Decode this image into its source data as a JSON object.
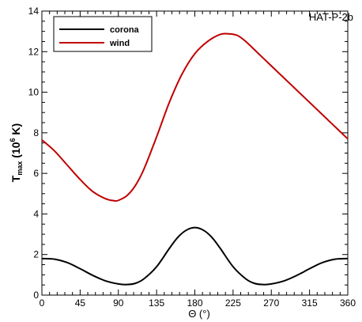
{
  "chart_data": {
    "type": "line",
    "annotation": "HAT-P-2b",
    "xlabel": "Θ (°)",
    "ylabel_main": "T",
    "ylabel_sub": "max",
    "ylabel_rest": " (10",
    "ylabel_sup": "6",
    "ylabel_end": " K)",
    "xlim": [
      0,
      360
    ],
    "ylim": [
      0,
      14
    ],
    "xticks": [
      0,
      45,
      90,
      135,
      180,
      225,
      270,
      315,
      360
    ],
    "yticks": [
      0,
      2,
      4,
      6,
      8,
      10,
      12,
      14
    ],
    "legend_position": "top-left",
    "series": [
      {
        "name": "corona",
        "color": "#000000",
        "x": [
          0,
          15,
          30,
          45,
          60,
          75,
          90,
          100,
          110,
          120,
          135,
          150,
          160,
          170,
          180,
          190,
          200,
          210,
          225,
          240,
          250,
          260,
          270,
          285,
          300,
          315,
          330,
          345,
          360
        ],
        "y": [
          1.8,
          1.77,
          1.6,
          1.3,
          0.97,
          0.7,
          0.55,
          0.52,
          0.58,
          0.8,
          1.4,
          2.3,
          2.85,
          3.2,
          3.33,
          3.2,
          2.85,
          2.3,
          1.4,
          0.8,
          0.58,
          0.52,
          0.55,
          0.7,
          0.97,
          1.3,
          1.6,
          1.77,
          1.8
        ]
      },
      {
        "name": "wind",
        "color": "#c00000",
        "x": [
          0,
          15,
          30,
          45,
          60,
          75,
          85,
          90,
          100,
          110,
          120,
          135,
          150,
          165,
          180,
          195,
          210,
          220,
          230,
          240,
          255,
          270,
          285,
          300,
          315,
          330,
          345,
          360
        ],
        "y": [
          7.65,
          7.1,
          6.4,
          5.7,
          5.1,
          4.75,
          4.65,
          4.67,
          4.9,
          5.4,
          6.2,
          7.8,
          9.5,
          10.9,
          11.9,
          12.5,
          12.85,
          12.88,
          12.8,
          12.5,
          11.9,
          11.3,
          10.7,
          10.1,
          9.5,
          8.9,
          8.3,
          7.7
        ]
      }
    ]
  }
}
